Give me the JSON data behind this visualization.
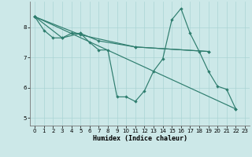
{
  "xlabel": "Humidex (Indice chaleur)",
  "bg_color": "#cce8e8",
  "grid_color": "#aad4d4",
  "line_color": "#2e7d6e",
  "xlim": [
    -0.5,
    23.5
  ],
  "ylim": [
    4.75,
    8.85
  ],
  "yticks": [
    5,
    6,
    7,
    8
  ],
  "xticks": [
    0,
    1,
    2,
    3,
    4,
    5,
    6,
    7,
    8,
    9,
    10,
    11,
    12,
    13,
    14,
    15,
    16,
    17,
    18,
    19,
    20,
    21,
    22,
    23
  ],
  "line1": [
    [
      0,
      8.35
    ],
    [
      1,
      7.9
    ],
    [
      2,
      7.65
    ],
    [
      3,
      7.65
    ],
    [
      4,
      7.8
    ],
    [
      5,
      7.8
    ],
    [
      6,
      7.5
    ],
    [
      7,
      7.25
    ],
    [
      8,
      7.25
    ],
    [
      9,
      5.7
    ],
    [
      10,
      5.7
    ],
    [
      11,
      5.55
    ],
    [
      12,
      5.9
    ],
    [
      13,
      6.55
    ],
    [
      14,
      6.95
    ],
    [
      15,
      8.25
    ],
    [
      16,
      8.62
    ],
    [
      17,
      7.8
    ],
    [
      18,
      7.2
    ],
    [
      19,
      6.55
    ],
    [
      20,
      6.05
    ],
    [
      21,
      5.95
    ],
    [
      22,
      5.3
    ]
  ],
  "line2": [
    [
      0,
      8.35
    ],
    [
      3,
      7.65
    ],
    [
      5,
      7.8
    ],
    [
      7,
      7.55
    ],
    [
      11,
      7.35
    ],
    [
      19,
      7.2
    ]
  ],
  "line3": [
    [
      0,
      8.35
    ],
    [
      5,
      7.75
    ],
    [
      11,
      7.35
    ],
    [
      19,
      7.2
    ]
  ],
  "line4": [
    [
      0,
      8.35
    ],
    [
      22,
      5.3
    ]
  ]
}
